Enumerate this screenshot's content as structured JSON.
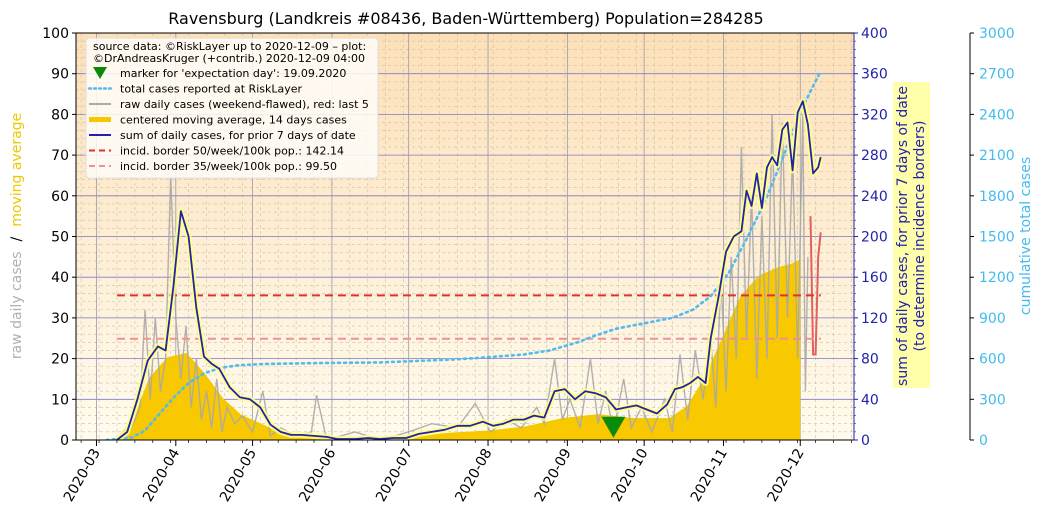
{
  "chart_data": {
    "type": "line",
    "title": "Ravensburg (Landkreis #08436, Baden-Württemberg) Population=284285",
    "x_range": [
      "2020-02-22",
      "2020-12-22"
    ],
    "x_ticks": [
      "2020-03",
      "2020-04",
      "2020-05",
      "2020-06",
      "2020-07",
      "2020-08",
      "2020-09",
      "2020-10",
      "2020-11",
      "2020-12"
    ],
    "left_axis": {
      "label_parts": [
        "raw daily cases",
        "/",
        "moving average"
      ],
      "label_colors": [
        "#b0b0b0",
        "#000000",
        "#f0c800"
      ],
      "ylim": [
        0,
        100
      ],
      "ticks": [
        "0",
        "10",
        "20",
        "30",
        "40",
        "50",
        "60",
        "70",
        "80",
        "90",
        "100"
      ]
    },
    "right_axis_1": {
      "label_lines": [
        "sum of daily cases, for prior 7 days of date",
        "(to determine incidence borders)"
      ],
      "color": "#2222aa",
      "ylim": [
        0,
        400
      ],
      "ticks": [
        "0",
        "40",
        "80",
        "120",
        "160",
        "200",
        "240",
        "280",
        "320",
        "360",
        "400"
      ]
    },
    "right_axis_2": {
      "label": "cumulative total cases",
      "color": "#44bbee",
      "ylim": [
        0,
        3000
      ],
      "ticks": [
        "0",
        "300",
        "600",
        "900",
        "1200",
        "1500",
        "1800",
        "2100",
        "2400",
        "2700",
        "3000"
      ]
    },
    "legend": {
      "placement": "top-left",
      "source_lines": [
        "source data: ©RiskLayer up to 2020-12-09 – plot:",
        "©DrAndreasKruger (+contrib.) 2020-12-09 04:00"
      ],
      "entries": [
        {
          "label": "marker for 'expectation day': 19.09.2020",
          "kind": "marker",
          "color": "#0a8a0a"
        },
        {
          "label": "total cases reported at RiskLayer",
          "kind": "dotted",
          "color": "#55bbee"
        },
        {
          "label": "raw daily cases (weekend-flawed), red: last 5",
          "kind": "line",
          "color": "#aaaaaa"
        },
        {
          "label": "centered moving average, 14 days cases",
          "kind": "thick",
          "color": "#f5c800"
        },
        {
          "label": "sum of daily cases, for prior 7 days of date",
          "kind": "line",
          "color": "#2222aa"
        },
        {
          "label": "incid. border 50/week/100k pop.: 142.14",
          "kind": "dashed",
          "color": "#e03030"
        },
        {
          "label": "incid. border 35/week/100k pop.: 99.50",
          "kind": "dashed",
          "color": "#f09090"
        }
      ]
    },
    "expectation_marker": {
      "date": "2020-09-19",
      "y": 3
    },
    "incidence_borders": {
      "border_50": 142.14,
      "border_35": 99.5,
      "start": "2020-03-09",
      "end": "2020-12-09"
    },
    "series": [
      {
        "name": "total cases reported at RiskLayer",
        "axis": "right_axis_2",
        "points": [
          [
            "2020-03-05",
            0
          ],
          [
            "2020-03-15",
            20
          ],
          [
            "2020-03-20",
            70
          ],
          [
            "2020-03-25",
            180
          ],
          [
            "2020-03-31",
            310
          ],
          [
            "2020-04-06",
            420
          ],
          [
            "2020-04-12",
            490
          ],
          [
            "2020-04-18",
            530
          ],
          [
            "2020-04-25",
            550
          ],
          [
            "2020-05-05",
            560
          ],
          [
            "2020-05-20",
            565
          ],
          [
            "2020-06-01",
            568
          ],
          [
            "2020-06-20",
            572
          ],
          [
            "2020-07-01",
            580
          ],
          [
            "2020-07-20",
            595
          ],
          [
            "2020-08-01",
            610
          ],
          [
            "2020-08-15",
            630
          ],
          [
            "2020-08-25",
            660
          ],
          [
            "2020-09-05",
            720
          ],
          [
            "2020-09-12",
            770
          ],
          [
            "2020-09-20",
            820
          ],
          [
            "2020-10-01",
            860
          ],
          [
            "2020-10-12",
            900
          ],
          [
            "2020-10-20",
            960
          ],
          [
            "2020-10-27",
            1060
          ],
          [
            "2020-11-03",
            1230
          ],
          [
            "2020-11-10",
            1480
          ],
          [
            "2020-11-17",
            1750
          ],
          [
            "2020-11-24",
            2070
          ],
          [
            "2020-12-01",
            2420
          ],
          [
            "2020-12-09",
            2720
          ]
        ]
      },
      {
        "name": "sum of daily cases, for prior 7 days of date",
        "axis": "right_axis_1",
        "points": [
          [
            "2020-03-09",
            0
          ],
          [
            "2020-03-13",
            8
          ],
          [
            "2020-03-17",
            40
          ],
          [
            "2020-03-21",
            78
          ],
          [
            "2020-03-25",
            92
          ],
          [
            "2020-03-28",
            88
          ],
          [
            "2020-03-31",
            150
          ],
          [
            "2020-04-03",
            225
          ],
          [
            "2020-04-06",
            200
          ],
          [
            "2020-04-09",
            130
          ],
          [
            "2020-04-12",
            82
          ],
          [
            "2020-04-15",
            75
          ],
          [
            "2020-04-18",
            70
          ],
          [
            "2020-04-22",
            52
          ],
          [
            "2020-04-26",
            42
          ],
          [
            "2020-04-30",
            40
          ],
          [
            "2020-05-04",
            32
          ],
          [
            "2020-05-08",
            15
          ],
          [
            "2020-05-12",
            8
          ],
          [
            "2020-05-16",
            5
          ],
          [
            "2020-05-20",
            5
          ],
          [
            "2020-05-25",
            4
          ],
          [
            "2020-05-30",
            3
          ],
          [
            "2020-06-03",
            1
          ],
          [
            "2020-06-10",
            1
          ],
          [
            "2020-06-15",
            2
          ],
          [
            "2020-06-20",
            1
          ],
          [
            "2020-06-25",
            2
          ],
          [
            "2020-06-30",
            2
          ],
          [
            "2020-07-05",
            6
          ],
          [
            "2020-07-10",
            8
          ],
          [
            "2020-07-15",
            10
          ],
          [
            "2020-07-20",
            14
          ],
          [
            "2020-07-25",
            14
          ],
          [
            "2020-07-30",
            18
          ],
          [
            "2020-08-03",
            14
          ],
          [
            "2020-08-07",
            16
          ],
          [
            "2020-08-11",
            20
          ],
          [
            "2020-08-15",
            20
          ],
          [
            "2020-08-19",
            24
          ],
          [
            "2020-08-23",
            22
          ],
          [
            "2020-08-27",
            48
          ],
          [
            "2020-08-31",
            50
          ],
          [
            "2020-09-04",
            40
          ],
          [
            "2020-09-08",
            48
          ],
          [
            "2020-09-12",
            46
          ],
          [
            "2020-09-16",
            42
          ],
          [
            "2020-09-20",
            30
          ],
          [
            "2020-09-24",
            32
          ],
          [
            "2020-09-28",
            34
          ],
          [
            "2020-10-02",
            30
          ],
          [
            "2020-10-06",
            26
          ],
          [
            "2020-10-10",
            35
          ],
          [
            "2020-10-13",
            50
          ],
          [
            "2020-10-16",
            52
          ],
          [
            "2020-10-19",
            56
          ],
          [
            "2020-10-22",
            62
          ],
          [
            "2020-10-25",
            56
          ],
          [
            "2020-10-27",
            100
          ],
          [
            "2020-10-30",
            140
          ],
          [
            "2020-11-02",
            185
          ],
          [
            "2020-11-05",
            200
          ],
          [
            "2020-11-08",
            205
          ],
          [
            "2020-11-10",
            245
          ],
          [
            "2020-11-12",
            230
          ],
          [
            "2020-11-14",
            262
          ],
          [
            "2020-11-16",
            228
          ],
          [
            "2020-11-18",
            268
          ],
          [
            "2020-11-20",
            278
          ],
          [
            "2020-11-22",
            270
          ],
          [
            "2020-11-24",
            305
          ],
          [
            "2020-11-26",
            312
          ],
          [
            "2020-11-28",
            265
          ],
          [
            "2020-11-30",
            322
          ],
          [
            "2020-12-02",
            333
          ],
          [
            "2020-12-04",
            310
          ],
          [
            "2020-12-06",
            262
          ],
          [
            "2020-12-08",
            268
          ],
          [
            "2020-12-09",
            278
          ]
        ]
      },
      {
        "name": "centered moving average, 14 days cases",
        "axis": "left_axis",
        "points": [
          [
            "2020-03-09",
            0
          ],
          [
            "2020-03-16",
            5
          ],
          [
            "2020-03-22",
            15
          ],
          [
            "2020-03-29",
            20
          ],
          [
            "2020-04-05",
            21
          ],
          [
            "2020-04-12",
            16
          ],
          [
            "2020-04-19",
            10
          ],
          [
            "2020-04-26",
            6
          ],
          [
            "2020-05-03",
            4
          ],
          [
            "2020-05-10",
            2
          ],
          [
            "2020-05-17",
            1
          ],
          [
            "2020-05-24",
            0.5
          ],
          [
            "2020-06-07",
            0.2
          ],
          [
            "2020-06-21",
            0.3
          ],
          [
            "2020-07-05",
            0.8
          ],
          [
            "2020-07-19",
            1.5
          ],
          [
            "2020-08-02",
            2
          ],
          [
            "2020-08-16",
            3
          ],
          [
            "2020-08-30",
            5
          ],
          [
            "2020-09-13",
            6
          ],
          [
            "2020-09-27",
            5
          ],
          [
            "2020-10-11",
            5
          ],
          [
            "2020-10-18",
            8
          ],
          [
            "2020-10-25",
            15
          ],
          [
            "2020-11-01",
            25
          ],
          [
            "2020-11-08",
            35
          ],
          [
            "2020-11-15",
            40
          ],
          [
            "2020-11-22",
            42
          ],
          [
            "2020-11-28",
            43
          ],
          [
            "2020-12-01",
            44
          ]
        ]
      },
      {
        "name": "raw daily cases (weekend-flawed), red: last 5",
        "axis": "left_axis",
        "points": [
          [
            "2020-03-09",
            0
          ],
          [
            "2020-03-14",
            2
          ],
          [
            "2020-03-18",
            8
          ],
          [
            "2020-03-20",
            32
          ],
          [
            "2020-03-22",
            10
          ],
          [
            "2020-03-24",
            30
          ],
          [
            "2020-03-26",
            12
          ],
          [
            "2020-03-28",
            20
          ],
          [
            "2020-03-30",
            65
          ],
          [
            "2020-04-01",
            30
          ],
          [
            "2020-04-03",
            15
          ],
          [
            "2020-04-05",
            28
          ],
          [
            "2020-04-07",
            8
          ],
          [
            "2020-04-09",
            20
          ],
          [
            "2020-04-11",
            5
          ],
          [
            "2020-04-13",
            12
          ],
          [
            "2020-04-15",
            3
          ],
          [
            "2020-04-17",
            15
          ],
          [
            "2020-04-19",
            2
          ],
          [
            "2020-04-21",
            8
          ],
          [
            "2020-04-24",
            4
          ],
          [
            "2020-04-27",
            6
          ],
          [
            "2020-05-01",
            2
          ],
          [
            "2020-05-05",
            12
          ],
          [
            "2020-05-08",
            1
          ],
          [
            "2020-05-12",
            3
          ],
          [
            "2020-05-18",
            1
          ],
          [
            "2020-05-24",
            2
          ],
          [
            "2020-05-26",
            11
          ],
          [
            "2020-05-30",
            0
          ],
          [
            "2020-06-10",
            2
          ],
          [
            "2020-06-20",
            0
          ],
          [
            "2020-07-01",
            2
          ],
          [
            "2020-07-10",
            4
          ],
          [
            "2020-07-20",
            3
          ],
          [
            "2020-07-27",
            9
          ],
          [
            "2020-08-02",
            2
          ],
          [
            "2020-08-08",
            5
          ],
          [
            "2020-08-14",
            3
          ],
          [
            "2020-08-20",
            8
          ],
          [
            "2020-08-23",
            4
          ],
          [
            "2020-08-27",
            20
          ],
          [
            "2020-08-30",
            5
          ],
          [
            "2020-09-02",
            10
          ],
          [
            "2020-09-06",
            3
          ],
          [
            "2020-09-10",
            20
          ],
          [
            "2020-09-13",
            4
          ],
          [
            "2020-09-16",
            12
          ],
          [
            "2020-09-19",
            2
          ],
          [
            "2020-09-23",
            15
          ],
          [
            "2020-09-26",
            3
          ],
          [
            "2020-09-30",
            8
          ],
          [
            "2020-10-04",
            2
          ],
          [
            "2020-10-09",
            10
          ],
          [
            "2020-10-12",
            2
          ],
          [
            "2020-10-15",
            21
          ],
          [
            "2020-10-18",
            5
          ],
          [
            "2020-10-21",
            22
          ],
          [
            "2020-10-24",
            10
          ],
          [
            "2020-10-27",
            25
          ],
          [
            "2020-10-29",
            8
          ],
          [
            "2020-10-31",
            40
          ],
          [
            "2020-11-02",
            12
          ],
          [
            "2020-11-04",
            45
          ],
          [
            "2020-11-06",
            20
          ],
          [
            "2020-11-08",
            72
          ],
          [
            "2020-11-10",
            25
          ],
          [
            "2020-11-12",
            60
          ],
          [
            "2020-11-14",
            15
          ],
          [
            "2020-11-16",
            55
          ],
          [
            "2020-11-18",
            20
          ],
          [
            "2020-11-20",
            80
          ],
          [
            "2020-11-22",
            25
          ],
          [
            "2020-11-24",
            78
          ],
          [
            "2020-11-26",
            30
          ],
          [
            "2020-11-28",
            70
          ],
          [
            "2020-11-30",
            20
          ],
          [
            "2020-12-02",
            80
          ],
          [
            "2020-12-03",
            12
          ],
          [
            "2020-12-04",
            45
          ]
        ]
      },
      {
        "name": "raw daily cases, last 5",
        "axis": "left_axis",
        "color": "#e06060",
        "points": [
          [
            "2020-12-05",
            55
          ],
          [
            "2020-12-06",
            21
          ],
          [
            "2020-12-07",
            21
          ],
          [
            "2020-12-08",
            45
          ],
          [
            "2020-12-09",
            51
          ]
        ]
      }
    ]
  }
}
